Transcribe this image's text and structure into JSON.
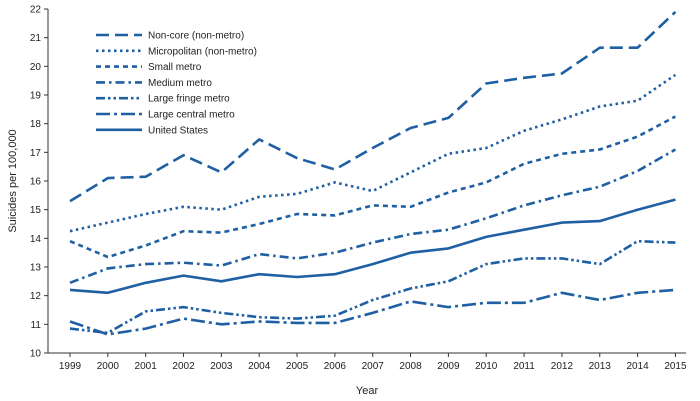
{
  "chart_data": {
    "type": "line",
    "title": "",
    "xlabel": "Year",
    "ylabel": "Suicides per 100,000",
    "ylim": [
      10,
      22
    ],
    "yticks": [
      "10",
      "11",
      "12",
      "13",
      "14",
      "15",
      "16",
      "17",
      "18",
      "19",
      "20",
      "21",
      "22"
    ],
    "x": [
      "1999",
      "2000",
      "2001",
      "2002",
      "2003",
      "2004",
      "2005",
      "2006",
      "2007",
      "2008",
      "2009",
      "2010",
      "2011",
      "2012",
      "2013",
      "2014",
      "2015"
    ],
    "grid": false,
    "legend_position": "top-left",
    "color": "#1f5fa3",
    "series": [
      {
        "name": "Non-core (non-metro)",
        "dash": "long-dash",
        "values": [
          15.3,
          16.1,
          16.15,
          16.9,
          16.3,
          17.45,
          16.8,
          16.4,
          17.15,
          17.85,
          18.2,
          19.4,
          19.6,
          19.75,
          20.65,
          20.65,
          21.9
        ]
      },
      {
        "name": "Micropolitan (non-metro)",
        "dash": "dot",
        "values": [
          14.25,
          14.55,
          14.85,
          15.1,
          15.0,
          15.45,
          15.55,
          15.95,
          15.65,
          16.3,
          16.95,
          17.15,
          17.75,
          18.15,
          18.6,
          18.8,
          19.7
        ]
      },
      {
        "name": "Small metro",
        "dash": "short-dash",
        "values": [
          13.9,
          13.35,
          13.75,
          14.25,
          14.2,
          14.5,
          14.85,
          14.8,
          15.15,
          15.1,
          15.6,
          15.95,
          16.6,
          16.95,
          17.1,
          17.55,
          18.25
        ]
      },
      {
        "name": "Medium metro",
        "dash": "dash-dot",
        "values": [
          12.45,
          12.95,
          13.1,
          13.15,
          13.05,
          13.45,
          13.3,
          13.5,
          13.85,
          14.15,
          14.3,
          14.7,
          15.15,
          15.5,
          15.8,
          16.35,
          17.1
        ]
      },
      {
        "name": "Large fringe metro",
        "dash": "dash-dot-dot",
        "values": [
          10.85,
          10.7,
          11.45,
          11.6,
          11.4,
          11.25,
          11.2,
          11.3,
          11.85,
          12.25,
          12.5,
          13.1,
          13.3,
          13.3,
          13.1,
          13.9,
          13.85
        ]
      },
      {
        "name": "Large central metro",
        "dash": "long-dash-dot",
        "values": [
          11.1,
          10.65,
          10.85,
          11.2,
          11.0,
          11.1,
          11.05,
          11.05,
          11.4,
          11.8,
          11.6,
          11.75,
          11.75,
          12.1,
          11.85,
          12.1,
          12.2
        ]
      },
      {
        "name": "United States",
        "dash": "solid",
        "values": [
          12.2,
          12.1,
          12.45,
          12.7,
          12.5,
          12.75,
          12.65,
          12.75,
          13.1,
          13.5,
          13.65,
          14.05,
          14.3,
          14.55,
          14.6,
          15.0,
          15.35
        ]
      }
    ]
  }
}
